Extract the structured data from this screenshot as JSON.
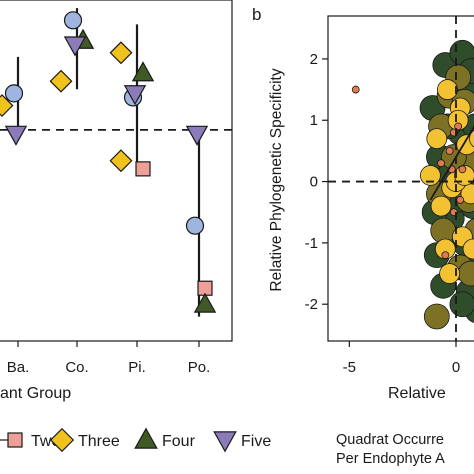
{
  "chart_data": [
    {
      "type": "scatter",
      "panel_label": "",
      "xlabel": "r Plant Group",
      "ylabel": "",
      "categories": [
        "Ba.",
        "Co.",
        "Pi.",
        "Po."
      ],
      "ylim": [
        -2.6,
        1.6
      ],
      "reference_line_y": 0,
      "grid": false,
      "legend_position": "bottom",
      "series": [
        {
          "name": "",
          "marker": "circle",
          "color": "#9fb4df",
          "points": [
            {
              "x": "Ba.",
              "y": 0.45
            },
            {
              "x": "Co.",
              "y": 1.35
            },
            {
              "x": "Pi.",
              "y": 0.4
            },
            {
              "x": "Po.",
              "y": -1.18
            }
          ]
        },
        {
          "name": "Two",
          "marker": "square",
          "color": "#ee9f98",
          "points": [
            {
              "x": "Pi.",
              "y": -0.48
            },
            {
              "x": "Po.",
              "y": -1.95
            }
          ]
        },
        {
          "name": "Three",
          "marker": "diamond",
          "color": "#f0c21c",
          "points": [
            {
              "x": "Ba.",
              "y": 0.3
            },
            {
              "x": "Co.",
              "y": 0.6
            },
            {
              "x": "Pi.",
              "y": 0.95
            },
            {
              "x": "Pi.",
              "y": -0.38
            }
          ]
        },
        {
          "name": "Four",
          "marker": "triangle-up",
          "color": "#3f5a25",
          "points": [
            {
              "x": "Co.",
              "y": 1.1
            },
            {
              "x": "Pi.",
              "y": 0.7
            },
            {
              "x": "Po.",
              "y": -2.15
            }
          ]
        },
        {
          "name": "Five",
          "marker": "triangle-down",
          "color": "#8b7bb8",
          "points": [
            {
              "x": "Ba.",
              "y": -0.05
            },
            {
              "x": "Co.",
              "y": 1.05
            },
            {
              "x": "Pi.",
              "y": 0.45
            },
            {
              "x": "Po.",
              "y": -0.05
            }
          ]
        }
      ],
      "error_bars": [
        {
          "x": "Ba.",
          "low": 0.0,
          "high": 0.9
        },
        {
          "x": "Co.",
          "low": 0.5,
          "high": 1.5
        },
        {
          "x": "Pi.",
          "low": -0.5,
          "high": 1.3
        },
        {
          "x": "Po.",
          "low": -2.3,
          "high": -0.05
        }
      ]
    },
    {
      "type": "scatter",
      "panel_label": "b",
      "xlabel": "Relative",
      "ylabel": "Relative Phylogenetic Specificity",
      "xlim": [
        -6,
        1.5
      ],
      "ylim": [
        -2.6,
        2.7
      ],
      "xticks": [
        -5,
        0
      ],
      "yticks": [
        -2,
        -1,
        0,
        1,
        2
      ],
      "reference_lines": {
        "x": 0,
        "y": 0
      },
      "grid": false,
      "trend_line": [
        [
          -1.2,
          -0.3
        ],
        [
          1.2,
          1.1
        ]
      ],
      "series": [
        {
          "name": "",
          "color": "#2f4d2a",
          "points": [
            [
              -1.1,
              1.2
            ],
            [
              -0.5,
              1.9
            ],
            [
              0.3,
              2.1
            ],
            [
              1.0,
              1.5
            ],
            [
              0.7,
              1.8
            ],
            [
              0.2,
              0.8
            ],
            [
              -0.8,
              0.4
            ],
            [
              0.5,
              0.2
            ],
            [
              1.1,
              0.5
            ],
            [
              -0.2,
              -0.6
            ],
            [
              0.8,
              -0.4
            ],
            [
              -0.9,
              -1.2
            ],
            [
              0.4,
              -1.0
            ],
            [
              1.2,
              -1.3
            ],
            [
              -0.6,
              -1.7
            ],
            [
              0.6,
              -1.8
            ],
            [
              1.0,
              -2.1
            ],
            [
              0.0,
              -0.3
            ],
            [
              0.9,
              0.9
            ],
            [
              -0.4,
              0.9
            ],
            [
              0.3,
              -2.0
            ],
            [
              -0.3,
              0.1
            ],
            [
              1.1,
              -0.1
            ],
            [
              -1.0,
              -0.5
            ]
          ]
        },
        {
          "name": "",
          "color": "#7d7126",
          "points": [
            [
              -0.3,
              1.4
            ],
            [
              0.4,
              1.3
            ],
            [
              -0.7,
              0.9
            ],
            [
              0.9,
              0.3
            ],
            [
              -0.1,
              0.4
            ],
            [
              0.6,
              -0.3
            ],
            [
              -0.6,
              -0.8
            ],
            [
              0.2,
              -1.4
            ],
            [
              -0.9,
              -2.2
            ],
            [
              1.0,
              -0.8
            ],
            [
              0.1,
              1.7
            ],
            [
              -0.8,
              -0.2
            ],
            [
              0.7,
              -1.5
            ]
          ]
        },
        {
          "name": "",
          "color": "#f2c233",
          "points": [
            [
              -0.4,
              1.5
            ],
            [
              0.2,
              1.2
            ],
            [
              -0.9,
              0.7
            ],
            [
              0.5,
              0.6
            ],
            [
              -0.2,
              -0.1
            ],
            [
              0.7,
              -0.2
            ],
            [
              -0.7,
              -0.4
            ],
            [
              0.3,
              -0.9
            ],
            [
              -0.5,
              -1.1
            ],
            [
              0.8,
              -1.1
            ],
            [
              0.0,
              0.0
            ],
            [
              -1.2,
              0.1
            ],
            [
              0.4,
              0.1
            ],
            [
              -0.3,
              -1.5
            ],
            [
              0.1,
              1.0
            ],
            [
              1.1,
              0.7
            ]
          ]
        },
        {
          "name": "",
          "color": "#e07b4f",
          "points": [
            [
              -4.7,
              1.5
            ],
            [
              -0.1,
              0.8
            ],
            [
              -0.2,
              0.2
            ],
            [
              -0.1,
              -0.5
            ],
            [
              0.1,
              0.9
            ],
            [
              -0.3,
              0.5
            ],
            [
              0.3,
              0.2
            ],
            [
              -0.5,
              -1.2
            ],
            [
              -0.7,
              0.3
            ],
            [
              0.2,
              -0.3
            ]
          ]
        }
      ]
    }
  ],
  "legend": {
    "items": [
      {
        "label": "Two",
        "marker": "square",
        "color": "#ee9f98"
      },
      {
        "label": "Three",
        "marker": "diamond",
        "color": "#f0c21c"
      },
      {
        "label": "Four",
        "marker": "triangle-up",
        "color": "#3f5a25"
      },
      {
        "label": "Five",
        "marker": "triangle-down",
        "color": "#8b7bb8"
      }
    ]
  },
  "caption_b": {
    "line1": "Quadrat Occurre",
    "line2": "Per Endophyte A"
  }
}
